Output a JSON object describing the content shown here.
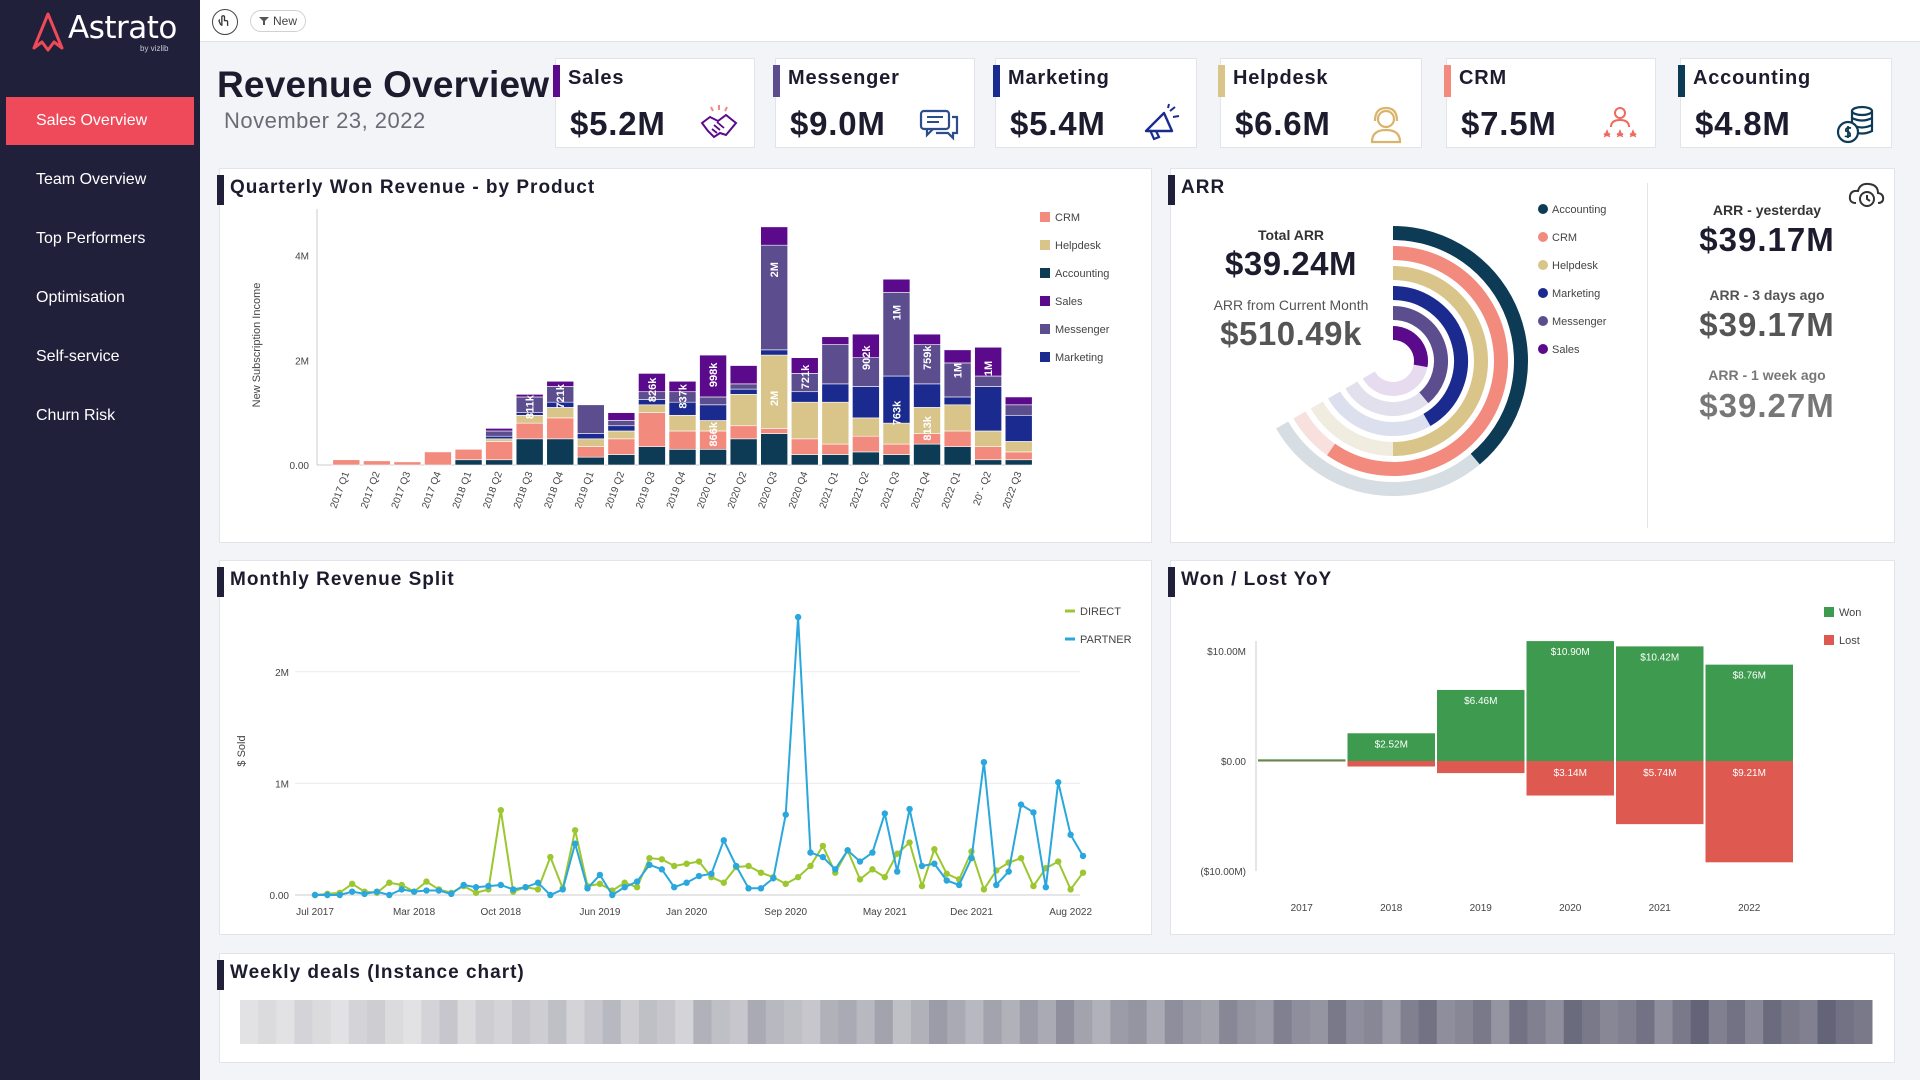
{
  "app": {
    "logo_text": "Astrato",
    "logo_sub": "by vizlib",
    "new_button_label": "New"
  },
  "sidebar": {
    "items": [
      {
        "label": "Sales Overview",
        "active": true
      },
      {
        "label": "Team Overview",
        "active": false
      },
      {
        "label": "Top Performers",
        "active": false
      },
      {
        "label": "Optimisation",
        "active": false
      },
      {
        "label": "Self-service",
        "active": false
      },
      {
        "label": "Churn Risk",
        "active": false
      }
    ]
  },
  "header": {
    "title": "Revenue Overview",
    "date": "November 23, 2022"
  },
  "kpis": [
    {
      "label": "Sales",
      "value": "$5.2M",
      "color": "#5a0a8a",
      "icon": "handshake-icon"
    },
    {
      "label": "Messenger",
      "value": "$9.0M",
      "color": "#5c4e8e",
      "icon": "chat-icon"
    },
    {
      "label": "Marketing",
      "value": "$5.4M",
      "color": "#1b2a8f",
      "icon": "megaphone-icon"
    },
    {
      "label": "Helpdesk",
      "value": "$6.6M",
      "color": "#d9c48a",
      "icon": "headset-icon"
    },
    {
      "label": "CRM",
      "value": "$7.5M",
      "color": "#f28a7e",
      "icon": "people-stars-icon"
    },
    {
      "label": "Accounting",
      "value": "$4.8M",
      "color": "#0d3a55",
      "icon": "coins-icon"
    }
  ],
  "colors": {
    "CRM": "#f28a7e",
    "Helpdesk": "#d9c48a",
    "Accounting": "#0d3a55",
    "Sales": "#5a0a8a",
    "Messenger": "#5c4e8e",
    "Marketing": "#1b2a8f",
    "direct": "#9cc730",
    "partner": "#2aa7dc",
    "won": "#3d9a4f",
    "lost": "#de5a50",
    "accent": "#ee4a5a",
    "sidebar_bg": "#20203a"
  },
  "quarterly": {
    "title": "Quarterly Won Revenue - by Product",
    "chart_data": {
      "type": "bar",
      "stacked": true,
      "ylabel": "New Subscription Income",
      "ylim": [
        0,
        4700000
      ],
      "yticks": [
        {
          "v": 0,
          "t": "0.00"
        },
        {
          "v": 2000000,
          "t": "2M"
        },
        {
          "v": 4000000,
          "t": "4M"
        }
      ],
      "categories": [
        "2017 Q1",
        "2017 Q2",
        "2017 Q3",
        "2017 Q4",
        "2018 Q1",
        "2018 Q2",
        "2018 Q3",
        "2018 Q4",
        "2019 Q1",
        "2019 Q2",
        "2019 Q3",
        "2019 Q4",
        "2020 Q1",
        "2020 Q2",
        "2020 Q3",
        "2020 Q4",
        "2021 Q1",
        "2021 Q2",
        "2021 Q3",
        "2021 Q4",
        "2022 Q1",
        "20’ - Q2",
        "2022 Q3"
      ],
      "series": [
        {
          "name": "Accounting",
          "values": [
            0,
            0,
            0,
            0,
            100000,
            100000,
            500000,
            500000,
            150000,
            200000,
            350000,
            300000,
            300000,
            500000,
            600000,
            200000,
            200000,
            250000,
            200000,
            400000,
            350000,
            100000,
            100000
          ]
        },
        {
          "name": "CRM",
          "values": [
            100000,
            80000,
            60000,
            250000,
            200000,
            350000,
            300000,
            400000,
            200000,
            300000,
            650000,
            350000,
            350000,
            250000,
            100000,
            300000,
            200000,
            300000,
            200000,
            200000,
            300000,
            250000,
            150000
          ]
        },
        {
          "name": "Helpdesk",
          "values": [
            0,
            0,
            0,
            0,
            0,
            50000,
            150000,
            200000,
            150000,
            150000,
            150000,
            300000,
            200000,
            600000,
            1400000,
            700000,
            800000,
            350000,
            400000,
            500000,
            500000,
            300000,
            200000
          ]
        },
        {
          "name": "Marketing",
          "values": [
            0,
            0,
            0,
            0,
            0,
            50000,
            50000,
            100000,
            100000,
            100000,
            100000,
            250000,
            300000,
            100000,
            100000,
            200000,
            350000,
            600000,
            900000,
            450000,
            150000,
            850000,
            500000
          ]
        },
        {
          "name": "Messenger",
          "values": [
            0,
            0,
            0,
            0,
            0,
            100000,
            300000,
            300000,
            550000,
            100000,
            150000,
            200000,
            150000,
            100000,
            2000000,
            350000,
            750000,
            550000,
            1600000,
            750000,
            650000,
            200000,
            200000
          ]
        },
        {
          "name": "Sales",
          "values": [
            0,
            0,
            0,
            0,
            0,
            50000,
            50000,
            100000,
            0,
            150000,
            350000,
            200000,
            800000,
            350000,
            350000,
            300000,
            150000,
            450000,
            250000,
            200000,
            250000,
            550000,
            150000
          ]
        }
      ],
      "labels": [
        {
          "i": 6,
          "t": "811k"
        },
        {
          "i": 7,
          "t": "721k"
        },
        {
          "i": 10,
          "t": "826k"
        },
        {
          "i": 11,
          "t": "837k"
        },
        {
          "i": 12,
          "t": "998k"
        },
        {
          "i": 12,
          "t": "866k",
          "low": true
        },
        {
          "i": 14,
          "t": "2M"
        },
        {
          "i": 14,
          "t": "2M",
          "low": true
        },
        {
          "i": 15,
          "t": "721k"
        },
        {
          "i": 17,
          "t": "902k"
        },
        {
          "i": 18,
          "t": "1M"
        },
        {
          "i": 18,
          "t": "763k",
          "low": true
        },
        {
          "i": 19,
          "t": "759k"
        },
        {
          "i": 19,
          "t": "813k",
          "low": true
        },
        {
          "i": 20,
          "t": "1M"
        },
        {
          "i": 21,
          "t": "1M"
        }
      ],
      "legend": [
        "CRM",
        "Helpdesk",
        "Accounting",
        "Sales",
        "Messenger",
        "Marketing"
      ]
    }
  },
  "arr": {
    "title": "ARR",
    "total_label": "Total ARR",
    "total_value": "$39.24M",
    "month_label": "ARR from Current Month",
    "month_value": "$510.49k",
    "legend": [
      "Accounting",
      "CRM",
      "Helpdesk",
      "Marketing",
      "Messenger",
      "Sales"
    ],
    "yesterday_label": "ARR - yesterday",
    "yesterday_value": "$39.17M",
    "three_days_label": "ARR - 3 days ago",
    "three_days_value": "$39.17M",
    "week_label": "ARR - 1 week ago",
    "week_value": "$39.27M"
  },
  "monthly": {
    "title": "Monthly Revenue Split",
    "chart_data": {
      "type": "line",
      "ylabel": "$ Sold",
      "ylim": [
        0,
        2500000
      ],
      "yticks": [
        {
          "v": 0,
          "t": "0.00"
        },
        {
          "v": 1000000,
          "t": "1M"
        },
        {
          "v": 2000000,
          "t": "2M"
        }
      ],
      "xticks": [
        {
          "i": 0,
          "t": "Jul 2017"
        },
        {
          "i": 8,
          "t": "Mar 2018"
        },
        {
          "i": 15,
          "t": "Oct 2018"
        },
        {
          "i": 23,
          "t": "Jun 2019"
        },
        {
          "i": 30,
          "t": "Jan 2020"
        },
        {
          "i": 38,
          "t": "Sep 2020"
        },
        {
          "i": 46,
          "t": "May 2021"
        },
        {
          "i": 53,
          "t": "Dec 2021"
        },
        {
          "i": 61,
          "t": "Aug 2022"
        }
      ],
      "series": [
        {
          "name": "DIRECT",
          "values": [
            0,
            10000,
            20000,
            100000,
            30000,
            20000,
            110000,
            90000,
            30000,
            120000,
            50000,
            20000,
            80000,
            20000,
            50000,
            760000,
            30000,
            70000,
            50000,
            340000,
            60000,
            580000,
            80000,
            100000,
            40000,
            110000,
            70000,
            330000,
            320000,
            260000,
            280000,
            300000,
            160000,
            110000,
            250000,
            260000,
            200000,
            160000,
            100000,
            160000,
            260000,
            440000,
            200000,
            400000,
            140000,
            230000,
            160000,
            370000,
            470000,
            80000,
            410000,
            190000,
            140000,
            390000,
            50000,
            220000,
            290000,
            330000,
            80000,
            240000,
            300000,
            50000,
            200000
          ]
        },
        {
          "name": "PARTNER",
          "values": [
            0,
            0,
            0,
            30000,
            10000,
            30000,
            0,
            50000,
            30000,
            40000,
            40000,
            10000,
            90000,
            70000,
            80000,
            90000,
            50000,
            70000,
            110000,
            0,
            50000,
            460000,
            60000,
            180000,
            0,
            70000,
            120000,
            270000,
            230000,
            70000,
            110000,
            170000,
            190000,
            490000,
            260000,
            60000,
            60000,
            150000,
            720000,
            2490000,
            380000,
            340000,
            230000,
            400000,
            300000,
            380000,
            730000,
            210000,
            770000,
            260000,
            280000,
            130000,
            90000,
            330000,
            1190000,
            90000,
            210000,
            810000,
            740000,
            70000,
            1010000,
            540000,
            350000
          ]
        }
      ],
      "legend": [
        "DIRECT",
        "PARTNER"
      ]
    }
  },
  "wonlost": {
    "title": "Won / Lost YoY",
    "chart_data": {
      "type": "bar",
      "ylim": [
        -10000000,
        10000000
      ],
      "yticks": [
        {
          "v": 10000000,
          "t": "$10.00M"
        },
        {
          "v": 0,
          "t": "$0.00"
        },
        {
          "v": -10000000,
          "t": "($10.00M)"
        }
      ],
      "categories": [
        "2017",
        "2018",
        "2019",
        "2020",
        "2021",
        "2022"
      ],
      "series": [
        {
          "name": "Won",
          "values": [
            150000,
            2520000,
            6460000,
            10900000,
            10420000,
            8760000
          ],
          "labels": [
            "",
            "$2.52M",
            "$6.46M",
            "$10.90M",
            "$10.42M",
            "$8.76M"
          ]
        },
        {
          "name": "Lost",
          "values": [
            -50000,
            -500000,
            -1100000,
            -3140000,
            -5740000,
            -9210000
          ],
          "labels": [
            "",
            "",
            "",
            "$3.14M",
            "$5.74M",
            "$9.21M"
          ]
        }
      ],
      "legend": [
        "Won",
        "Lost"
      ]
    }
  },
  "weekly": {
    "title": "Weekly deals (Instance chart)",
    "chart_data": {
      "type": "heatmap",
      "values": [
        0.1,
        0.15,
        0.1,
        0.2,
        0.15,
        0.1,
        0.2,
        0.25,
        0.15,
        0.1,
        0.2,
        0.3,
        0.15,
        0.25,
        0.2,
        0.3,
        0.25,
        0.35,
        0.2,
        0.3,
        0.4,
        0.25,
        0.35,
        0.3,
        0.2,
        0.45,
        0.35,
        0.3,
        0.5,
        0.4,
        0.35,
        0.3,
        0.45,
        0.5,
        0.4,
        0.55,
        0.35,
        0.45,
        0.6,
        0.5,
        0.4,
        0.55,
        0.45,
        0.6,
        0.5,
        0.7,
        0.55,
        0.45,
        0.6,
        0.65,
        0.5,
        0.7,
        0.6,
        0.55,
        0.75,
        0.65,
        0.6,
        0.8,
        0.7,
        0.65,
        0.85,
        0.7,
        0.75,
        0.6,
        0.8,
        0.9,
        0.7,
        0.75,
        0.85,
        0.65,
        0.9,
        0.8,
        0.7,
        0.95,
        0.85,
        0.75,
        0.8,
        0.9,
        0.7,
        0.85,
        1.0,
        0.8,
        0.9,
        0.75,
        0.95,
        0.85,
        0.8,
        1.0,
        0.9,
        0.85
      ]
    }
  }
}
